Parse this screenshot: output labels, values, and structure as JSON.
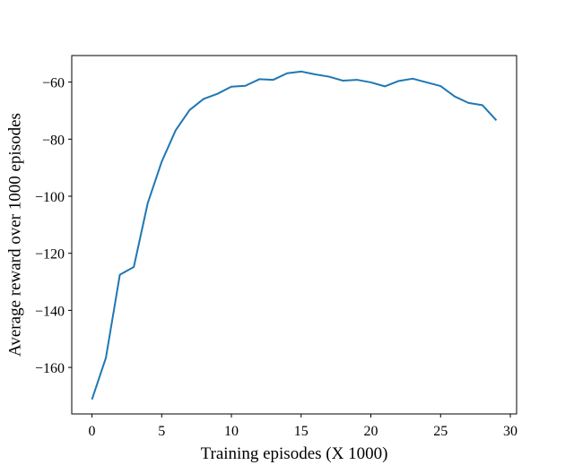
{
  "chart_data": {
    "type": "line",
    "title": "",
    "xlabel": "Training episodes (X 1000)",
    "ylabel": "Average reward over 1000 episodes",
    "xlim": [
      -1.45,
      30.45
    ],
    "ylim": [
      -176.3,
      -50.7
    ],
    "xticks": [
      0,
      5,
      10,
      15,
      20,
      25,
      30
    ],
    "yticks": [
      -160,
      -140,
      -120,
      -100,
      -80,
      -60
    ],
    "xtick_labels": [
      "0",
      "5",
      "10",
      "15",
      "20",
      "25",
      "30"
    ],
    "ytick_labels": [
      "−160",
      "−140",
      "−120",
      "−100",
      "−80",
      "−60"
    ],
    "grid": false,
    "legend": "none",
    "series": [
      {
        "color": "#1f77b4",
        "x": [
          0,
          1,
          2,
          3,
          4,
          5,
          6,
          7,
          8,
          9,
          10,
          11,
          12,
          13,
          14,
          15,
          16,
          17,
          18,
          19,
          20,
          21,
          22,
          23,
          24,
          25,
          26,
          27,
          28,
          29
        ],
        "y": [
          -171.2,
          -156.6,
          -127.5,
          -124.8,
          -102.4,
          -87.9,
          -76.9,
          -69.8,
          -65.9,
          -64.1,
          -61.6,
          -61.3,
          -59.0,
          -59.2,
          -56.9,
          -56.3,
          -57.3,
          -58.1,
          -59.5,
          -59.2,
          -60.1,
          -61.5,
          -59.6,
          -58.8,
          -60.1,
          -61.4,
          -65.0,
          -67.3,
          -68.1,
          -73.4
        ]
      }
    ]
  }
}
